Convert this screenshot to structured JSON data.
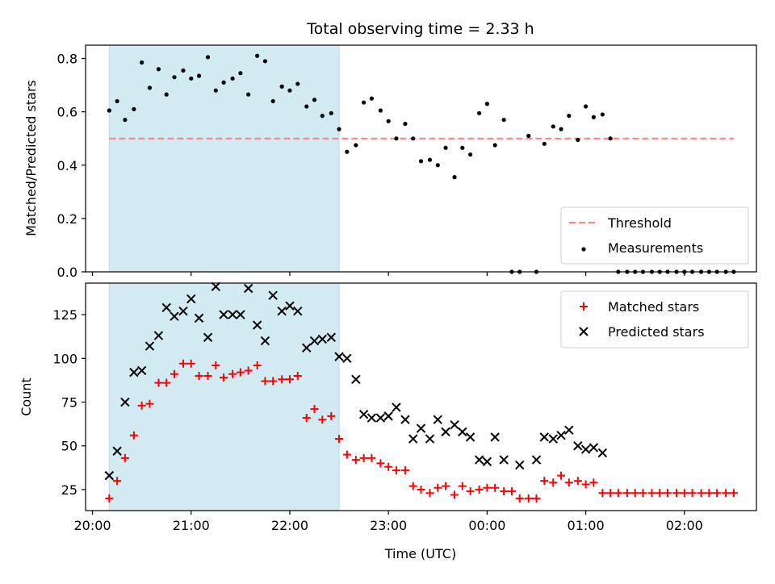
{
  "chart_data": [
    {
      "type": "scatter",
      "title": "Total observing time = 2.33 h",
      "ylabel": "Matched/Predicted stars",
      "xlabel": "",
      "x_unit": "hours since 20:00 UTC",
      "xlim": [
        -0.07,
        6.73
      ],
      "ylim": [
        0,
        0.85
      ],
      "yticks": [
        0,
        0.2,
        0.4,
        0.6,
        0.8
      ],
      "ytick_labels": [
        "0.0",
        "0.2",
        "0.4",
        "0.6",
        "0.8"
      ],
      "grid": false,
      "legend_position": "lower-right",
      "shaded_span": {
        "x": [
          0.17,
          2.5
        ],
        "color": "#add8e6"
      },
      "threshold": {
        "name": "Threshold",
        "value": 0.5,
        "x": [
          0.17,
          6.5
        ],
        "color": "#ff7f7f"
      },
      "series": [
        {
          "name": "Measurements",
          "marker": "dot",
          "color": "#000000",
          "x": [
            0.17,
            0.25,
            0.33,
            0.42,
            0.5,
            0.58,
            0.67,
            0.75,
            0.83,
            0.92,
            1.0,
            1.08,
            1.17,
            1.25,
            1.33,
            1.42,
            1.5,
            1.58,
            1.67,
            1.75,
            1.83,
            1.92,
            2.0,
            2.08,
            2.17,
            2.25,
            2.33,
            2.42,
            2.5,
            2.58,
            2.67,
            2.75,
            2.83,
            2.92,
            3.0,
            3.08,
            3.17,
            3.25,
            3.33,
            3.42,
            3.5,
            3.58,
            3.67,
            3.75,
            3.83,
            3.92,
            4.0,
            4.08,
            4.17,
            4.25,
            4.33,
            4.42,
            4.5,
            4.58,
            4.67,
            4.75,
            4.83,
            4.92,
            5.0,
            5.08,
            5.17,
            5.25,
            5.33,
            5.42,
            5.5,
            5.58,
            5.67,
            5.75,
            5.83,
            5.92,
            6.0,
            6.08,
            6.17,
            6.25,
            6.33,
            6.42,
            6.5
          ],
          "y": [
            0.605,
            0.64,
            0.57,
            0.61,
            0.785,
            0.69,
            0.76,
            0.665,
            0.73,
            0.755,
            0.725,
            0.735,
            0.805,
            0.68,
            0.71,
            0.725,
            0.745,
            0.665,
            0.81,
            0.79,
            0.64,
            0.695,
            0.68,
            0.705,
            0.62,
            0.645,
            0.585,
            0.595,
            0.535,
            0.45,
            0.475,
            0.635,
            0.65,
            0.605,
            0.565,
            0.5,
            0.555,
            0.5,
            0.415,
            0.42,
            0.4,
            0.465,
            0.355,
            0.465,
            0.44,
            0.595,
            0.63,
            0.475,
            0.57,
            0,
            0,
            0.51,
            0,
            0.48,
            0.545,
            0.535,
            0.585,
            0.495,
            0.62,
            0.58,
            0.59,
            0.5,
            0,
            0,
            0,
            0,
            0,
            0,
            0,
            0,
            0,
            0,
            0,
            0,
            0,
            0,
            0
          ]
        }
      ]
    },
    {
      "type": "scatter",
      "title": "",
      "ylabel": "Count",
      "xlabel": "Time (UTC)",
      "x_unit": "hours since 20:00 UTC",
      "xlim": [
        -0.07,
        6.73
      ],
      "ylim": [
        13,
        143
      ],
      "yticks": [
        25,
        50,
        75,
        100,
        125
      ],
      "ytick_labels": [
        "25",
        "50",
        "75",
        "100",
        "125"
      ],
      "xticks": [
        0,
        1,
        2,
        3,
        4,
        5,
        6
      ],
      "xtick_labels": [
        "20:00",
        "21:00",
        "22:00",
        "23:00",
        "00:00",
        "01:00",
        "02:00"
      ],
      "grid": false,
      "legend_position": "upper-right",
      "shaded_span": {
        "x": [
          0.17,
          2.5
        ],
        "color": "#add8e6"
      },
      "series": [
        {
          "name": "Matched stars",
          "marker": "plus",
          "color": "#ff0000",
          "x": [
            0.17,
            0.25,
            0.33,
            0.42,
            0.5,
            0.58,
            0.67,
            0.75,
            0.83,
            0.92,
            1.0,
            1.08,
            1.17,
            1.25,
            1.33,
            1.42,
            1.5,
            1.58,
            1.67,
            1.75,
            1.83,
            1.92,
            2.0,
            2.08,
            2.17,
            2.25,
            2.33,
            2.42,
            2.5,
            2.58,
            2.67,
            2.75,
            2.83,
            2.92,
            3.0,
            3.08,
            3.17,
            3.25,
            3.33,
            3.42,
            3.5,
            3.58,
            3.67,
            3.75,
            3.83,
            3.92,
            4.0,
            4.08,
            4.17,
            4.25,
            4.33,
            4.42,
            4.5,
            4.58,
            4.67,
            4.75,
            4.83,
            4.92,
            5.0,
            5.08,
            5.17,
            5.25,
            5.33,
            5.42,
            5.5,
            5.58,
            5.67,
            5.75,
            5.83,
            5.92,
            6.0,
            6.08,
            6.17,
            6.25,
            6.33,
            6.42,
            6.5
          ],
          "y": [
            20,
            30,
            43,
            56,
            73,
            74,
            86,
            86,
            91,
            97,
            97,
            90,
            90,
            96,
            89,
            91,
            92,
            93,
            96,
            87,
            87,
            88,
            88,
            90,
            66,
            71,
            65,
            67,
            54,
            45,
            42,
            43,
            43,
            40,
            38,
            36,
            36,
            27,
            25,
            23,
            26,
            27,
            22,
            27,
            24,
            25,
            26,
            26,
            24,
            24,
            20,
            20,
            20,
            30,
            29,
            33,
            29,
            30,
            28,
            29,
            23,
            23,
            23,
            23,
            23,
            23,
            23,
            23,
            23,
            23,
            23,
            23,
            23,
            23,
            23,
            23,
            23
          ]
        },
        {
          "name": "Predicted stars",
          "marker": "x",
          "color": "#000000",
          "x": [
            0.17,
            0.25,
            0.33,
            0.42,
            0.5,
            0.58,
            0.67,
            0.75,
            0.83,
            0.92,
            1.0,
            1.08,
            1.17,
            1.25,
            1.33,
            1.42,
            1.5,
            1.58,
            1.67,
            1.75,
            1.83,
            1.92,
            2.0,
            2.08,
            2.17,
            2.25,
            2.33,
            2.42,
            2.5,
            2.58,
            2.67,
            2.75,
            2.83,
            2.92,
            3.0,
            3.08,
            3.17,
            3.25,
            3.33,
            3.42,
            3.5,
            3.58,
            3.67,
            3.75,
            3.83,
            3.92,
            4.0,
            4.08,
            4.17,
            4.33,
            4.5,
            4.58,
            4.67,
            4.75,
            4.83,
            4.92,
            5.0,
            5.08,
            5.17
          ],
          "y": [
            33,
            47,
            75,
            92,
            93,
            107,
            113,
            129,
            124,
            127,
            134,
            123,
            112,
            141,
            125,
            125,
            125,
            140,
            119,
            110,
            136,
            127,
            130,
            127,
            106,
            110,
            111,
            112,
            101,
            100,
            88,
            68,
            66,
            66,
            67,
            72,
            65,
            54,
            60,
            54,
            65,
            58,
            62,
            58,
            55,
            42,
            41,
            55,
            42,
            39,
            42,
            55,
            54,
            56,
            59,
            50,
            48,
            49,
            46
          ]
        }
      ]
    }
  ]
}
